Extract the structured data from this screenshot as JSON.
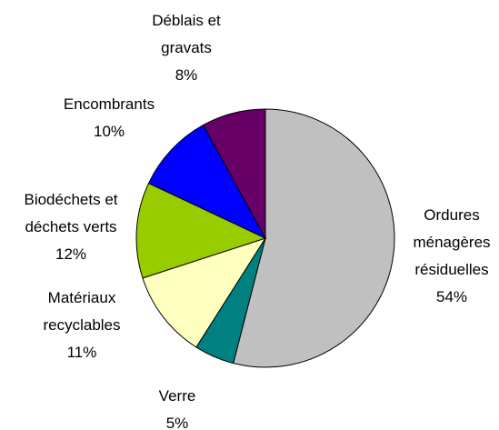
{
  "chart_data": {
    "type": "pie",
    "categories": [
      "Ordures ménagères résiduelles",
      "Verre",
      "Matériaux recyclables",
      "Biodéchets et déchets verts",
      "Encombrants",
      "Déblais et gravats"
    ],
    "values": [
      54,
      5,
      11,
      12,
      10,
      8
    ],
    "value_labels": [
      "54%",
      "5%",
      "11%",
      "12%",
      "10%",
      "8%"
    ],
    "colors": [
      "#c0c0c0",
      "#008080",
      "#ffffc0",
      "#99cc00",
      "#0000ff",
      "#660066"
    ]
  }
}
